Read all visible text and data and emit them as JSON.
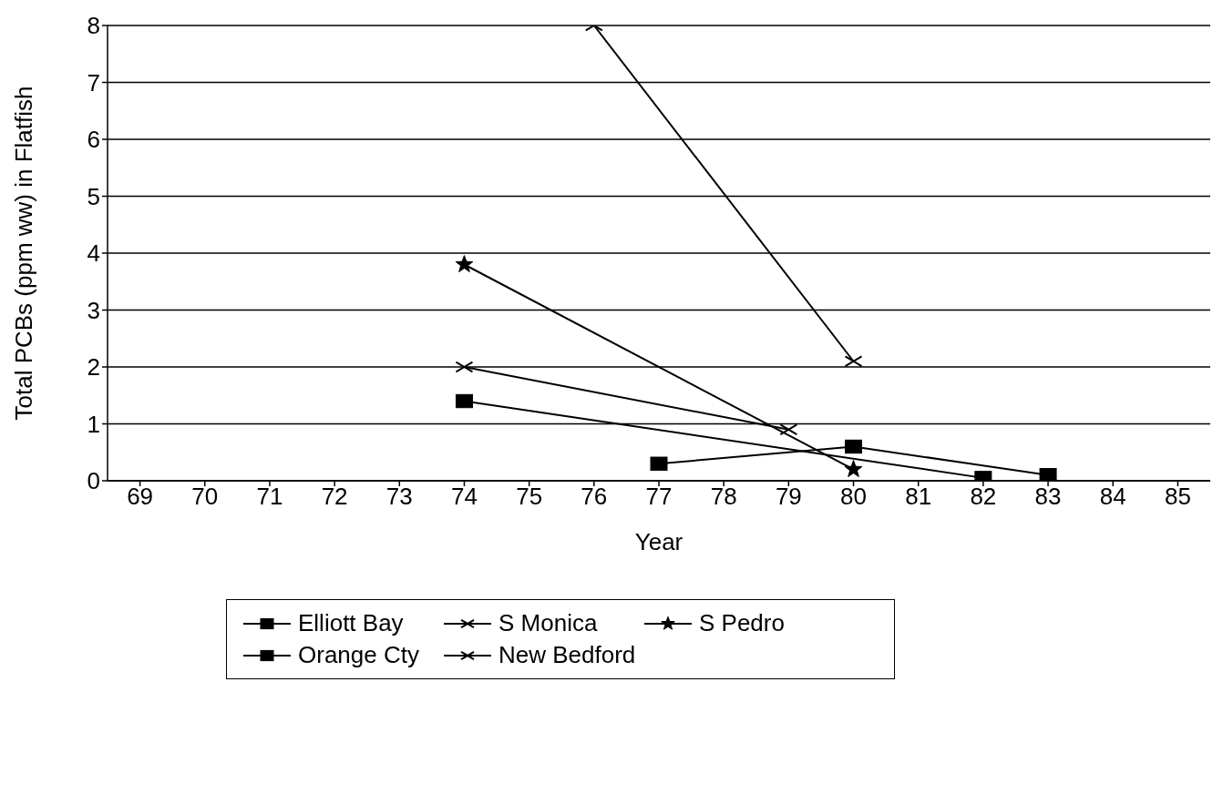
{
  "chart_data": {
    "type": "line",
    "xlabel": "Year",
    "ylabel": "Total PCBs (ppm ww) in Flatfish",
    "xlim": [
      68.5,
      85.5
    ],
    "xticks": [
      69,
      70,
      71,
      72,
      73,
      74,
      75,
      76,
      77,
      78,
      79,
      80,
      81,
      82,
      83,
      84,
      85
    ],
    "ylim": [
      0,
      8
    ],
    "yticks": [
      0,
      1,
      2,
      3,
      4,
      5,
      6,
      7,
      8
    ],
    "grid": "y",
    "legend": "bottom",
    "series": [
      {
        "name": "Elliott Bay",
        "color": "#000000",
        "marker": "square",
        "x": [
          77,
          80,
          83
        ],
        "values": [
          0.3,
          0.6,
          0.1
        ]
      },
      {
        "name": "S Monica",
        "color": "#000000",
        "marker": "cross",
        "x": [
          74,
          79
        ],
        "values": [
          2.0,
          0.9
        ]
      },
      {
        "name": "S Pedro",
        "color": "#000000",
        "marker": "star",
        "x": [
          74,
          80
        ],
        "values": [
          3.8,
          0.2
        ]
      },
      {
        "name": "Orange Cty",
        "color": "#000000",
        "marker": "square",
        "x": [
          74,
          82
        ],
        "values": [
          1.4,
          0.05
        ]
      },
      {
        "name": "New Bedford",
        "color": "#000000",
        "marker": "cross",
        "x": [
          76,
          80
        ],
        "values": [
          8.0,
          2.1
        ]
      }
    ]
  }
}
